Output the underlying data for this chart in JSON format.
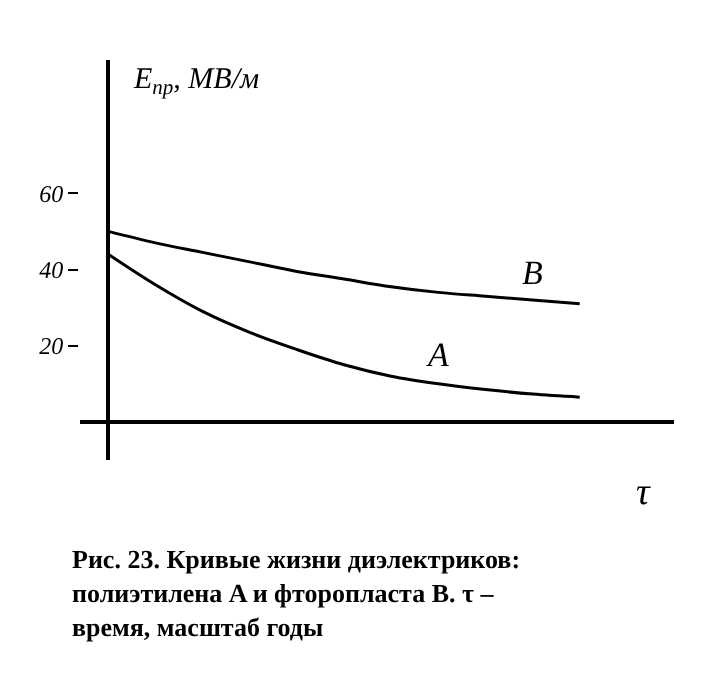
{
  "chart_data": {
    "type": "line",
    "xlabel": "τ",
    "ylabel": "E$_{пр}$, МВ/м",
    "categories": [
      null,
      null,
      null,
      null,
      null,
      null,
      null,
      null,
      null,
      null,
      null
    ],
    "series": [
      {
        "name": "B",
        "color": "#000000",
        "values": [
          50,
          47,
          44.5,
          42,
          39.5,
          37.5,
          35.5,
          34,
          33,
          32,
          31
        ]
      },
      {
        "name": "A",
        "color": "#000000",
        "values": [
          44,
          36,
          29,
          23.5,
          19,
          15,
          12,
          10,
          8.5,
          7.3,
          6.5
        ]
      }
    ],
    "ylim": [
      -10,
      95
    ],
    "yticks": [
      20,
      40,
      60
    ],
    "grid": false,
    "legend": false,
    "marker": "none",
    "line_style": "solid",
    "tick_labels": "y",
    "annotations": [
      "Рис. 23. Кривые жизни диэлектриков: полиэтилена A и фторопласта B. τ – время, масштаб годы"
    ]
  }
}
